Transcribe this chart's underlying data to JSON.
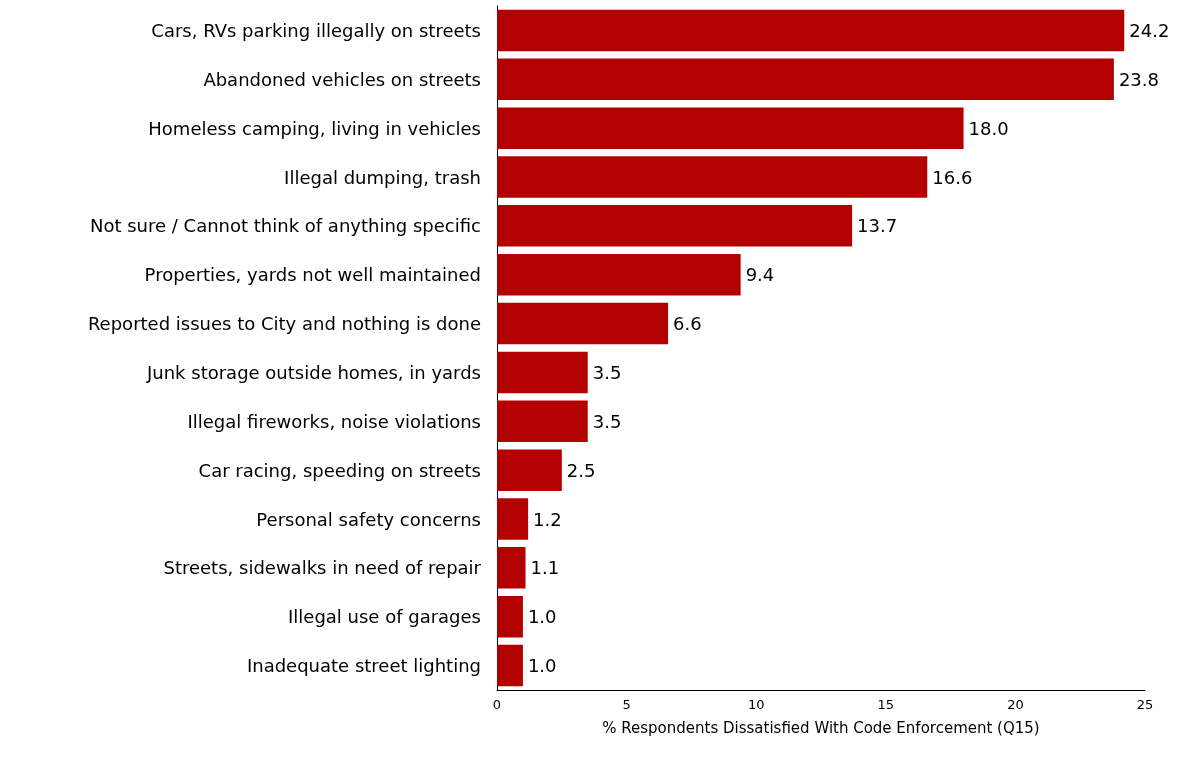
{
  "chart_data": {
    "type": "bar",
    "orientation": "horizontal",
    "xlabel": "% Respondents Dissatisfied With Code Enforcement (Q15)",
    "categories": [
      "Cars, RVs parking illegally on streets",
      "Abandoned vehicles on streets",
      "Homeless camping, living in vehicles",
      "Illegal dumping, trash",
      "Not sure / Cannot think of anything specific",
      "Properties, yards not well maintained",
      "Reported issues to City and nothing is done",
      "Junk storage outside homes, in yards",
      "Illegal fireworks, noise violations",
      "Car racing, speeding on streets",
      "Personal safety concerns",
      "Streets, sidewalks in need of repair",
      "Illegal use of garages",
      "Inadequate street lighting"
    ],
    "values": [
      24.2,
      23.8,
      18.0,
      16.6,
      13.7,
      9.4,
      6.6,
      3.5,
      3.5,
      2.5,
      1.2,
      1.1,
      1.0,
      1.0
    ],
    "value_labels": [
      "24.2",
      "23.8",
      "18.0",
      "16.6",
      "13.7",
      "9.4",
      "6.6",
      "3.5",
      "3.5",
      "2.5",
      "1.2",
      "1.1",
      "1.0",
      "1.0"
    ],
    "color": "#b30000",
    "xlim": [
      0,
      25
    ],
    "xticks": [
      0,
      5,
      10,
      15,
      20,
      25
    ],
    "grid": false
  }
}
